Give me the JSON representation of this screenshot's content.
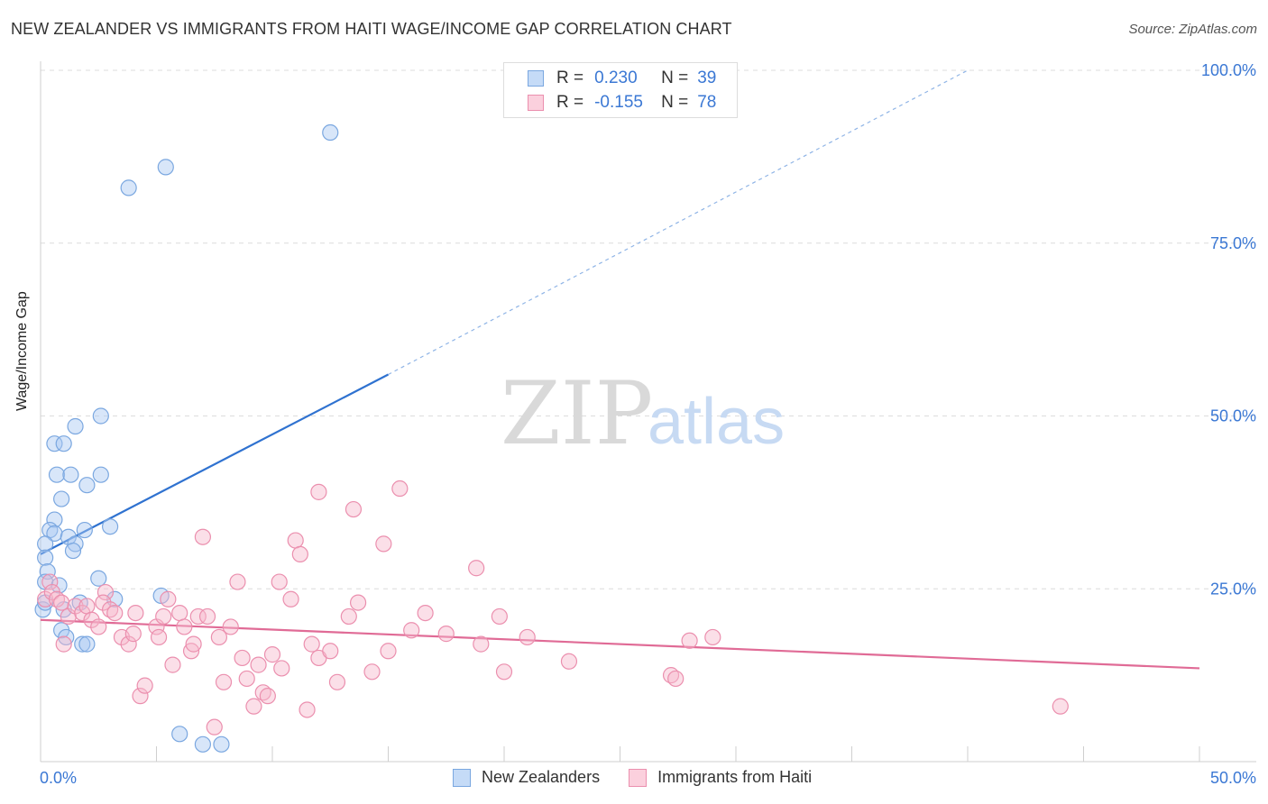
{
  "title": "NEW ZEALANDER VS IMMIGRANTS FROM HAITI WAGE/INCOME GAP CORRELATION CHART",
  "source": "Source: ZipAtlas.com",
  "watermark": {
    "zip": "ZIP",
    "atlas": "atlas"
  },
  "legend_top": {
    "rows": [
      {
        "r_label": "R =",
        "r_value": "0.230",
        "n_label": "N =",
        "n_value": "39",
        "color": "#a9c8f2"
      },
      {
        "r_label": "R =",
        "r_value": "-0.155",
        "n_label": "N =",
        "n_value": "78",
        "color": "#f7b8cb"
      }
    ]
  },
  "legend_bottom": {
    "items": [
      "New Zealanders",
      "Immigrants from Haiti"
    ]
  },
  "chart_data": {
    "type": "scatter",
    "title": "NEW ZEALANDER VS IMMIGRANTS FROM HAITI WAGE/INCOME GAP CORRELATION CHART",
    "xlabel": "",
    "ylabel": "Wage/Income Gap",
    "xlim": [
      0,
      50
    ],
    "ylim": [
      0,
      100
    ],
    "x_tick_labels": [
      "0.0%",
      "50.0%"
    ],
    "y_tick_labels": [
      "25.0%",
      "50.0%",
      "75.0%",
      "100.0%"
    ],
    "y_ticks": [
      25,
      50,
      75,
      100
    ],
    "x_ticks": [
      0,
      5,
      10,
      15,
      20,
      25,
      30,
      35,
      40,
      45,
      50
    ],
    "grid": true,
    "legend_position": "top-center",
    "series": [
      {
        "name": "New Zealanders",
        "color": "#a9c8f2",
        "stroke": "#7aa7e0",
        "trend": {
          "x0": 0,
          "y0": 30.0,
          "x1": 15.0,
          "y1": 56.0,
          "x_dash_end": 40.0,
          "y_dash_end": 100.0,
          "color": "#2f72d0"
        },
        "points": [
          [
            12.5,
            91.0
          ],
          [
            5.4,
            86.0
          ],
          [
            3.8,
            83.0
          ],
          [
            1.5,
            48.5
          ],
          [
            0.6,
            46.0
          ],
          [
            1.0,
            46.0
          ],
          [
            2.6,
            50.0
          ],
          [
            0.7,
            41.5
          ],
          [
            1.3,
            41.5
          ],
          [
            2.6,
            41.5
          ],
          [
            2.0,
            40.0
          ],
          [
            0.9,
            38.0
          ],
          [
            0.6,
            35.0
          ],
          [
            0.4,
            33.5
          ],
          [
            0.6,
            33.0
          ],
          [
            1.2,
            32.5
          ],
          [
            1.5,
            31.5
          ],
          [
            1.4,
            30.5
          ],
          [
            0.2,
            31.5
          ],
          [
            0.2,
            29.5
          ],
          [
            1.9,
            33.5
          ],
          [
            3.0,
            34.0
          ],
          [
            0.3,
            27.5
          ],
          [
            2.5,
            26.5
          ],
          [
            0.2,
            26.0
          ],
          [
            0.8,
            25.5
          ],
          [
            1.7,
            23.0
          ],
          [
            3.2,
            23.5
          ],
          [
            5.2,
            24.0
          ],
          [
            0.1,
            22.0
          ],
          [
            1.0,
            22.0
          ],
          [
            0.9,
            19.0
          ],
          [
            1.1,
            18.0
          ],
          [
            1.8,
            17.0
          ],
          [
            2.0,
            17.0
          ],
          [
            6.0,
            4.0
          ],
          [
            7.0,
            2.5
          ],
          [
            7.8,
            2.5
          ],
          [
            0.2,
            23.0
          ]
        ]
      },
      {
        "name": "Immigrants from Haiti",
        "color": "#f7b8cb",
        "stroke": "#eb8fae",
        "trend": {
          "x0": 0,
          "y0": 20.5,
          "x1": 50.0,
          "y1": 13.5,
          "color": "#e06b96"
        },
        "points": [
          [
            0.2,
            23.5
          ],
          [
            0.4,
            26.0
          ],
          [
            0.5,
            24.5
          ],
          [
            0.7,
            23.5
          ],
          [
            0.9,
            23.0
          ],
          [
            1.2,
            21.0
          ],
          [
            1.5,
            22.5
          ],
          [
            1.8,
            21.5
          ],
          [
            1.0,
            17.0
          ],
          [
            2.0,
            22.5
          ],
          [
            2.2,
            20.5
          ],
          [
            2.5,
            19.5
          ],
          [
            2.8,
            24.5
          ],
          [
            2.7,
            23.0
          ],
          [
            3.0,
            22.0
          ],
          [
            3.2,
            21.5
          ],
          [
            3.5,
            18.0
          ],
          [
            3.8,
            17.0
          ],
          [
            4.0,
            18.5
          ],
          [
            4.1,
            21.5
          ],
          [
            4.3,
            9.5
          ],
          [
            4.5,
            11.0
          ],
          [
            5.0,
            19.5
          ],
          [
            5.1,
            18.0
          ],
          [
            5.3,
            21.0
          ],
          [
            5.5,
            23.5
          ],
          [
            5.7,
            14.0
          ],
          [
            6.0,
            21.5
          ],
          [
            6.2,
            19.5
          ],
          [
            6.5,
            16.0
          ],
          [
            6.6,
            17.0
          ],
          [
            6.8,
            21.0
          ],
          [
            7.0,
            32.5
          ],
          [
            7.2,
            21.0
          ],
          [
            7.5,
            5.0
          ],
          [
            7.7,
            18.0
          ],
          [
            7.9,
            11.5
          ],
          [
            8.2,
            19.5
          ],
          [
            8.5,
            26.0
          ],
          [
            8.7,
            15.0
          ],
          [
            8.9,
            12.0
          ],
          [
            9.2,
            8.0
          ],
          [
            9.4,
            14.0
          ],
          [
            9.6,
            10.0
          ],
          [
            9.8,
            9.5
          ],
          [
            10.0,
            15.5
          ],
          [
            10.3,
            26.0
          ],
          [
            10.4,
            13.5
          ],
          [
            10.8,
            23.5
          ],
          [
            11.0,
            32.0
          ],
          [
            11.2,
            30.0
          ],
          [
            11.5,
            7.5
          ],
          [
            11.7,
            17.0
          ],
          [
            12.0,
            15.0
          ],
          [
            12.0,
            39.0
          ],
          [
            12.5,
            16.0
          ],
          [
            12.8,
            11.5
          ],
          [
            13.3,
            21.0
          ],
          [
            13.5,
            36.5
          ],
          [
            13.7,
            23.0
          ],
          [
            14.3,
            13.0
          ],
          [
            14.8,
            31.5
          ],
          [
            15.0,
            16.0
          ],
          [
            15.5,
            39.5
          ],
          [
            16.0,
            19.0
          ],
          [
            16.6,
            21.5
          ],
          [
            17.5,
            18.5
          ],
          [
            18.8,
            28.0
          ],
          [
            19.0,
            17.0
          ],
          [
            19.8,
            21.0
          ],
          [
            20.0,
            13.0
          ],
          [
            21.0,
            18.0
          ],
          [
            22.8,
            14.5
          ],
          [
            27.2,
            12.5
          ],
          [
            27.4,
            12.0
          ],
          [
            28.0,
            17.5
          ],
          [
            29.0,
            18.0
          ],
          [
            44.0,
            8.0
          ]
        ]
      }
    ]
  }
}
